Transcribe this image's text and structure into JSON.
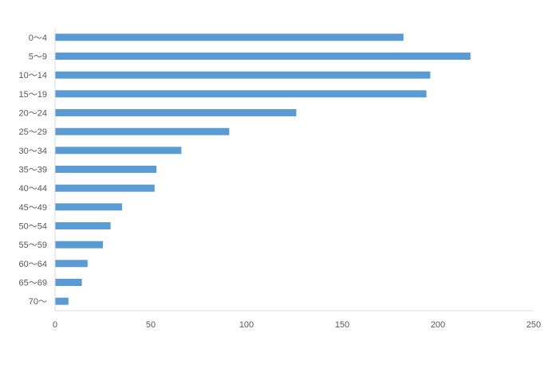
{
  "chart_data": {
    "type": "bar",
    "orientation": "horizontal",
    "title": "",
    "xlabel": "",
    "ylabel": "",
    "categories": [
      "0～4",
      "5～9",
      "10～14",
      "15～19",
      "20～24",
      "25～29",
      "30～34",
      "35～39",
      "40～44",
      "45～49",
      "50～54",
      "55～59",
      "60～64",
      "65～69",
      "70～"
    ],
    "values": [
      182,
      217,
      196,
      194,
      126,
      91,
      66,
      53,
      52,
      35,
      29,
      25,
      17,
      14,
      7
    ],
    "xlim": [
      0,
      250
    ],
    "x_ticks": [
      0,
      50,
      100,
      150,
      200,
      250
    ],
    "x_tick_labels": [
      "0",
      "50",
      "100",
      "150",
      "200",
      "250"
    ],
    "grid": false,
    "legend": "none",
    "colors": {
      "bar": "#5b9bd5",
      "axis": "#d9d9d9",
      "text": "#595959"
    }
  }
}
